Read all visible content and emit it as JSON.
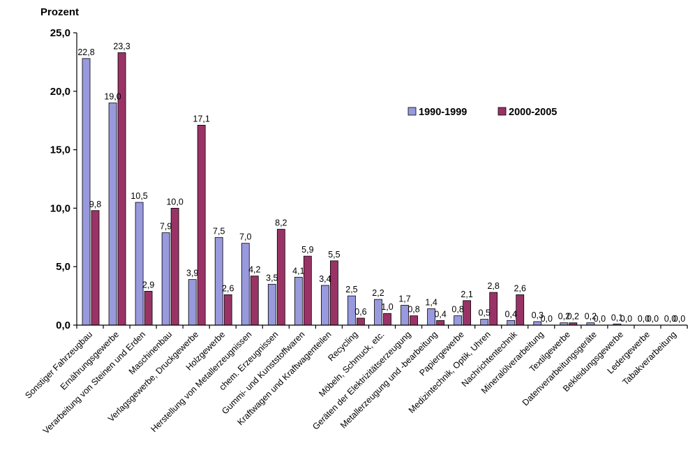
{
  "chart_data": {
    "type": "bar",
    "ylabel": "Prozent",
    "ylim": [
      0,
      25
    ],
    "yticks": [
      "0,0",
      "5,0",
      "10,0",
      "15,0",
      "20,0",
      "25,0"
    ],
    "grid": false,
    "legend_position": "top-right",
    "categories": [
      "Sonstiger Fahrzeugbau",
      "Ernährungsgewerbe",
      "Verarbeitung von Steinen und Erden",
      "Maschinenbau",
      "Verlagsgewerbe, Druckgewerbe",
      "Holzgewerbe",
      "Herstellung von Metallerzeugnissen",
      "chem. Erzeugnissen",
      "Gummi- und Kunststoffwaren",
      "Kraftwagen und Kraftwagenteilen",
      "Recycling",
      "Möbeln, Schmuck, etc.",
      "Geräten der Elektrizitätserzeugung",
      "Metallerzeugung und -bearbeitung",
      "Papiergewerbe",
      "Medizintechnik, Optik, Uhren",
      "Nachrichtentechnik",
      "Mineralölverarbeitung",
      "Textilgewerbe",
      "Datenverarbeitungsgeräte",
      "Bekleidungsgewerbe",
      "Ledergewerbe",
      "Tabakverarbeitung"
    ],
    "series": [
      {
        "name": "1990-1999",
        "color": "#9999dd",
        "values": [
          22.8,
          19.0,
          10.5,
          7.9,
          3.9,
          7.5,
          7.0,
          3.5,
          4.1,
          3.4,
          2.5,
          2.2,
          1.7,
          1.4,
          0.8,
          0.5,
          0.4,
          0.3,
          0.2,
          0.2,
          0.1,
          0.0,
          0.0
        ],
        "labels": [
          "22,8",
          "19,0",
          "10,5",
          "7,9",
          "3,9",
          "7,5",
          "7,0",
          "3,5",
          "4,1",
          "3,4",
          "2,5",
          "2,2",
          "1,7",
          "1,4",
          "0,8",
          "0,5",
          "0,4",
          "0,3",
          "0,2",
          "0,2",
          "0,1",
          "0,0",
          "0,0"
        ]
      },
      {
        "name": "2000-2005",
        "color": "#993366",
        "values": [
          9.8,
          23.3,
          2.9,
          10.0,
          17.1,
          2.6,
          4.2,
          8.2,
          5.9,
          5.5,
          0.6,
          1.0,
          0.8,
          0.4,
          2.1,
          2.8,
          2.6,
          0.0,
          0.2,
          0.0,
          0.0,
          0.0,
          0.0
        ],
        "labels": [
          "9,8",
          "23,3",
          "2,9",
          "10,0",
          "17,1",
          "2,6",
          "4,2",
          "8,2",
          "5,9",
          "5,5",
          "0,6",
          "1,0",
          "0,8",
          "0,4",
          "2,1",
          "2,8",
          "2,6",
          "0,0",
          "0,2",
          "0,0",
          "0,0",
          "0,0",
          "0,0"
        ]
      }
    ]
  }
}
